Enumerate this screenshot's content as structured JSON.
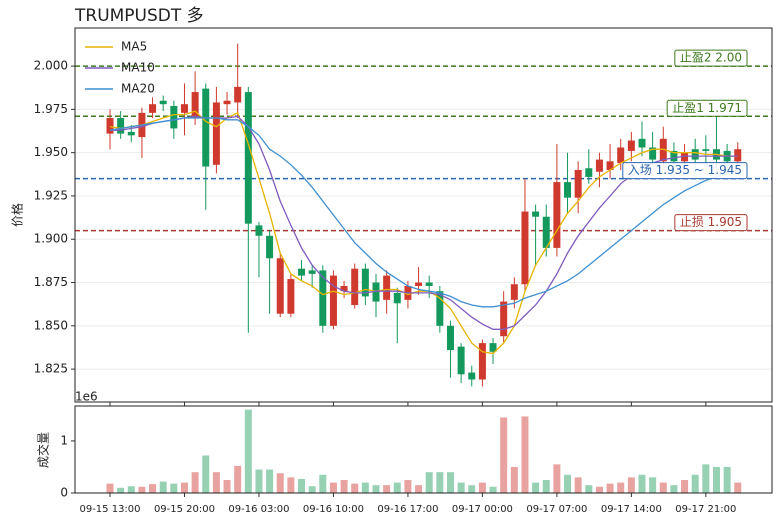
{
  "chart_data": {
    "type": "candlestick",
    "title": "TRUMPUSDT 多",
    "ylabel": "价格",
    "volume_label": "成交量",
    "volume_offset_label": "1e6",
    "up_color": "#d0392d",
    "down_color": "#13995b",
    "up_volume_color": "#e8a3a0",
    "down_volume_color": "#97d1b3",
    "grid": true,
    "legend": "upper left",
    "categories": [
      "09-15 13:00",
      null,
      null,
      null,
      null,
      null,
      null,
      "09-15 20:00",
      null,
      null,
      null,
      null,
      null,
      null,
      "09-16 03:00",
      null,
      null,
      null,
      null,
      null,
      null,
      "09-16 10:00",
      null,
      null,
      null,
      null,
      null,
      null,
      "09-16 17:00",
      null,
      null,
      null,
      null,
      null,
      null,
      "09-17 00:00",
      null,
      null,
      null,
      null,
      null,
      null,
      "09-17 07:00",
      null,
      null,
      null,
      null,
      null,
      null,
      "09-17 14:00",
      null,
      null,
      null,
      null,
      null,
      null,
      "09-17 21:00",
      null,
      null,
      null
    ],
    "open": [
      1.961,
      1.97,
      1.962,
      1.959,
      1.973,
      1.98,
      1.977,
      1.973,
      1.97,
      1.987,
      1.943,
      1.978,
      1.979,
      1.985,
      1.908,
      1.902,
      1.857,
      1.857,
      1.883,
      1.882,
      1.882,
      1.85,
      1.87,
      1.862,
      1.883,
      1.875,
      1.865,
      1.869,
      1.865,
      1.873,
      1.875,
      1.87,
      1.85,
      1.838,
      1.823,
      1.819,
      1.84,
      1.844,
      1.865,
      1.874,
      1.916,
      1.913,
      1.895,
      1.933,
      1.924,
      1.941,
      1.939,
      1.94,
      1.944,
      1.951,
      1.958,
      1.953,
      1.945,
      1.951,
      1.945,
      1.952,
      1.952,
      1.952,
      1.951,
      1.945
    ],
    "high": [
      1.975,
      1.974,
      1.966,
      1.976,
      1.982,
      1.983,
      1.98,
      1.99,
      1.997,
      1.99,
      1.988,
      1.985,
      2.013,
      1.988,
      1.91,
      1.905,
      1.892,
      1.88,
      1.888,
      1.885,
      1.885,
      1.882,
      1.876,
      1.886,
      1.886,
      1.88,
      1.882,
      1.872,
      1.876,
      1.884,
      1.879,
      1.873,
      1.853,
      1.84,
      1.827,
      1.842,
      1.843,
      1.87,
      1.878,
      1.935,
      1.92,
      1.92,
      1.955,
      1.95,
      1.945,
      1.952,
      1.95,
      1.955,
      1.958,
      1.962,
      1.968,
      1.962,
      1.965,
      1.956,
      1.955,
      1.958,
      1.96,
      1.971,
      1.955,
      1.956
    ],
    "low": [
      1.952,
      1.958,
      1.956,
      1.947,
      1.97,
      1.974,
      1.958,
      1.96,
      1.966,
      1.917,
      1.938,
      1.972,
      1.97,
      1.846,
      1.878,
      1.857,
      1.855,
      1.855,
      1.876,
      1.872,
      1.846,
      1.848,
      1.866,
      1.86,
      1.862,
      1.855,
      1.857,
      1.84,
      1.86,
      1.868,
      1.866,
      1.846,
      1.82,
      1.817,
      1.815,
      1.815,
      1.828,
      1.84,
      1.86,
      1.87,
      1.885,
      1.89,
      1.89,
      1.915,
      1.915,
      1.932,
      1.93,
      1.935,
      1.94,
      1.945,
      1.948,
      1.942,
      1.94,
      1.935,
      1.94,
      1.935,
      1.942,
      1.94,
      1.938,
      1.94
    ],
    "close": [
      1.97,
      1.961,
      1.96,
      1.973,
      1.978,
      1.978,
      1.964,
      1.978,
      1.985,
      1.942,
      1.979,
      1.98,
      1.988,
      1.909,
      1.902,
      1.889,
      1.889,
      1.877,
      1.879,
      1.88,
      1.85,
      1.879,
      1.873,
      1.883,
      1.867,
      1.864,
      1.879,
      1.863,
      1.873,
      1.875,
      1.873,
      1.85,
      1.836,
      1.822,
      1.819,
      1.84,
      1.835,
      1.864,
      1.874,
      1.916,
      1.913,
      1.895,
      1.933,
      1.924,
      1.94,
      1.936,
      1.946,
      1.945,
      1.953,
      1.957,
      1.953,
      1.946,
      1.958,
      1.945,
      1.95,
      1.946,
      1.951,
      1.946,
      1.945,
      1.952
    ],
    "volume": [
      0.18,
      0.1,
      0.13,
      0.12,
      0.17,
      0.22,
      0.18,
      0.2,
      0.4,
      0.72,
      0.4,
      0.25,
      0.52,
      1.6,
      0.45,
      0.45,
      0.38,
      0.3,
      0.27,
      0.13,
      0.35,
      0.2,
      0.25,
      0.18,
      0.2,
      0.15,
      0.15,
      0.2,
      0.25,
      0.15,
      0.4,
      0.4,
      0.4,
      0.2,
      0.15,
      0.2,
      0.12,
      1.45,
      0.5,
      1.47,
      0.2,
      0.25,
      0.55,
      0.35,
      0.3,
      0.15,
      0.12,
      0.18,
      0.2,
      0.3,
      0.35,
      0.3,
      0.2,
      0.15,
      0.25,
      0.35,
      0.55,
      0.5,
      0.5,
      0.2
    ],
    "series": [
      {
        "name": "MA5",
        "color": "#e6b400",
        "values": [
          1.965,
          1.964,
          1.965,
          1.966,
          1.968,
          1.97,
          1.972,
          1.972,
          1.974,
          1.968,
          1.965,
          1.97,
          1.973,
          1.955,
          1.935,
          1.915,
          1.892,
          1.88,
          1.876,
          1.873,
          1.868,
          1.87,
          1.868,
          1.869,
          1.871,
          1.87,
          1.871,
          1.871,
          1.868,
          1.87,
          1.87,
          1.866,
          1.86,
          1.85,
          1.84,
          1.835,
          1.834,
          1.84,
          1.85,
          1.87,
          1.885,
          1.895,
          1.905,
          1.915,
          1.922,
          1.93,
          1.936,
          1.94,
          1.944,
          1.947,
          1.95,
          1.952,
          1.952,
          1.95,
          1.95,
          1.95,
          1.949,
          1.949,
          1.948,
          1.948
        ]
      },
      {
        "name": "MA10",
        "color": "#7e5cbf",
        "values": [
          1.963,
          1.963,
          1.964,
          1.965,
          1.967,
          1.968,
          1.969,
          1.97,
          1.971,
          1.97,
          1.97,
          1.97,
          1.971,
          1.965,
          1.955,
          1.94,
          1.922,
          1.908,
          1.895,
          1.885,
          1.878,
          1.873,
          1.87,
          1.869,
          1.869,
          1.87,
          1.87,
          1.87,
          1.869,
          1.869,
          1.869,
          1.868,
          1.865,
          1.86,
          1.855,
          1.851,
          1.848,
          1.848,
          1.85,
          1.856,
          1.862,
          1.87,
          1.88,
          1.892,
          1.902,
          1.91,
          1.918,
          1.925,
          1.932,
          1.937,
          1.941,
          1.944,
          1.946,
          1.947,
          1.948,
          1.948,
          1.948,
          1.948,
          1.948,
          1.948
        ]
      },
      {
        "name": "MA20",
        "color": "#3f8fd2",
        "values": [
          1.963,
          1.964,
          1.965,
          1.966,
          1.967,
          1.968,
          1.969,
          1.97,
          1.97,
          1.97,
          1.97,
          1.969,
          1.969,
          1.965,
          1.96,
          1.952,
          1.948,
          1.943,
          1.937,
          1.93,
          1.922,
          1.914,
          1.906,
          1.898,
          1.892,
          1.886,
          1.881,
          1.877,
          1.873,
          1.871,
          1.87,
          1.869,
          1.867,
          1.864,
          1.862,
          1.861,
          1.861,
          1.862,
          1.863,
          1.866,
          1.868,
          1.87,
          1.873,
          1.876,
          1.88,
          1.885,
          1.89,
          1.895,
          1.9,
          1.905,
          1.91,
          1.915,
          1.92,
          1.924,
          1.928,
          1.931,
          1.934,
          1.936,
          1.938,
          1.94
        ]
      }
    ],
    "levels": [
      {
        "label": "止盈2 2.00",
        "value": 2.0,
        "color": "#3d7a1e"
      },
      {
        "label": "止盈1 1.971",
        "value": 1.971,
        "color": "#3d7a1e"
      },
      {
        "label": "入场 1.935 ~ 1.945",
        "value": 1.935,
        "color": "#2a66b0"
      },
      {
        "label": "止损 1.905",
        "value": 1.905,
        "color": "#a83a32"
      }
    ],
    "ylim": [
      1.806,
      2.022
    ],
    "yticks": [
      1.825,
      {
        "value": 1.85,
        "label": "1.850"
      },
      1.875,
      {
        "value": 1.9,
        "label": "1.900"
      },
      1.925,
      {
        "value": 1.95,
        "label": "1.950"
      },
      1.975,
      {
        "value": 2.0,
        "label": "2.000"
      }
    ],
    "volume_ylim": [
      0,
      1.67
    ],
    "volume_yticks": [
      0,
      1
    ]
  }
}
